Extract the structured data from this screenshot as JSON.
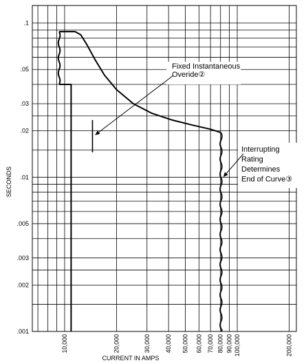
{
  "chart_data": {
    "type": "line",
    "xlabel": "CURRENT IN AMPS",
    "ylabel": "SECONDS",
    "x_scale": "log",
    "y_scale": "log",
    "xlim": [
      6500,
      220000
    ],
    "ylim": [
      0.001,
      0.13
    ],
    "grid": true,
    "y_ticks": [
      {
        "value": 0.1,
        "label": ".1"
      },
      {
        "value": 0.05,
        "label": ".05"
      },
      {
        "value": 0.03,
        "label": ".03"
      },
      {
        "value": 0.02,
        "label": ".02"
      },
      {
        "value": 0.01,
        "label": ".01"
      },
      {
        "value": 0.005,
        "label": ".005"
      },
      {
        "value": 0.003,
        "label": ".003"
      },
      {
        "value": 0.002,
        "label": ".002"
      },
      {
        "value": 0.001,
        "label": ".001"
      }
    ],
    "x_ticks": [
      {
        "value": 10000,
        "label": "10,000"
      },
      {
        "value": 20000,
        "label": "20,000"
      },
      {
        "value": 30000,
        "label": "30,000"
      },
      {
        "value": 40000,
        "label": "40,000"
      },
      {
        "value": 50000,
        "label": "50,000"
      },
      {
        "value": 60000,
        "label": "60,000"
      },
      {
        "value": 70000,
        "label": "70,000"
      },
      {
        "value": 80000,
        "label": "80,000"
      },
      {
        "value": 90000,
        "label": "90,000"
      },
      {
        "value": 100000,
        "label": "100,000"
      },
      {
        "value": 200000,
        "label": "200,000"
      }
    ],
    "y_grid_minor": [
      0.001,
      0.0015,
      0.002,
      0.0025,
      0.003,
      0.004,
      0.005,
      0.006,
      0.007,
      0.008,
      0.009,
      0.01,
      0.015,
      0.02,
      0.025,
      0.03,
      0.04,
      0.05,
      0.06,
      0.07,
      0.08,
      0.09,
      0.1
    ],
    "x_grid_minor": [
      7000,
      8000,
      9000,
      10000,
      20000,
      30000,
      40000,
      50000,
      60000,
      70000,
      80000,
      90000,
      100000,
      200000
    ],
    "series": [
      {
        "points": [
          [
            10900,
            0.001
          ],
          [
            10900,
            0.04
          ],
          [
            9300,
            0.04
          ]
        ]
      },
      {
        "points": [
          [
            9300,
            0.088
          ],
          [
            11500,
            0.088
          ],
          [
            12400,
            0.084
          ],
          [
            13500,
            0.072
          ],
          [
            15000,
            0.058
          ],
          [
            17000,
            0.046
          ],
          [
            20000,
            0.037
          ],
          [
            25000,
            0.03
          ],
          [
            32000,
            0.026
          ],
          [
            42000,
            0.0235
          ],
          [
            55000,
            0.0218
          ],
          [
            70000,
            0.0205
          ],
          [
            80000,
            0.0195
          ]
        ]
      }
    ],
    "wavy_vertical_segments": [
      {
        "x": 9300,
        "y_range": [
          0.04,
          0.088
        ]
      },
      {
        "x": 80500,
        "y_range": [
          0.001,
          0.0195
        ]
      }
    ],
    "marker_segment": {
      "x": 14500,
      "y_range": [
        0.0145,
        0.0235
      ]
    },
    "annotations": [
      {
        "lines": [
          "Fixed Instantaneous",
          "Overide②"
        ],
        "target": [
          14700,
          0.0185
        ]
      },
      {
        "lines": [
          "Interrupting",
          "Rating",
          "Determines",
          "End of Curve③"
        ],
        "target": [
          80500,
          0.0098
        ]
      }
    ]
  }
}
